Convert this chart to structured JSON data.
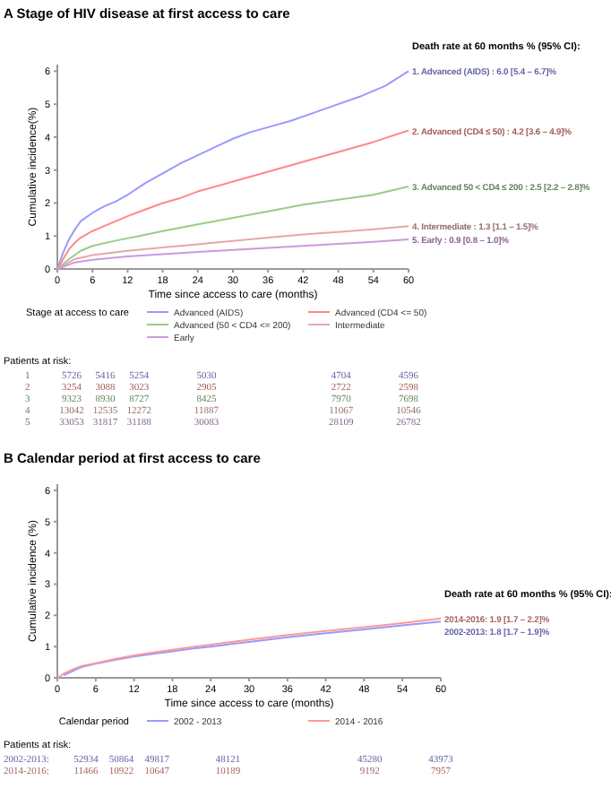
{
  "chart_data": [
    {
      "type": "line",
      "title": "A  Stage of HIV disease at first access to care",
      "xlabel": "Time since access to care (months)",
      "ylabel": "Cumulative incidence(%)",
      "legend_title": "Stage at access to care",
      "legend": "bottom",
      "xlim": [
        0,
        60
      ],
      "xticks": [
        0,
        6,
        12,
        18,
        24,
        30,
        36,
        42,
        48,
        54,
        60
      ],
      "ylim": [
        0,
        6.2
      ],
      "yticks": [
        0,
        1,
        2,
        3,
        4,
        5,
        6
      ],
      "series": [
        {
          "name": "Advanced (AIDS)",
          "color": "#9999ff",
          "x": [
            0,
            1,
            2,
            3,
            4,
            6,
            8,
            10,
            12,
            15,
            18,
            21,
            24,
            27,
            30,
            33,
            36,
            40,
            44,
            48,
            52,
            56,
            60
          ],
          "values": [
            0,
            0.5,
            0.9,
            1.2,
            1.45,
            1.7,
            1.9,
            2.05,
            2.25,
            2.6,
            2.9,
            3.2,
            3.45,
            3.7,
            3.95,
            4.15,
            4.3,
            4.5,
            4.75,
            5.0,
            5.25,
            5.55,
            6.0
          ]
        },
        {
          "name": "Advanced (CD4 <= 50)",
          "color": "#ff8888",
          "x": [
            0,
            1,
            2,
            3,
            4,
            6,
            8,
            10,
            12,
            15,
            18,
            21,
            24,
            30,
            36,
            42,
            48,
            54,
            60
          ],
          "values": [
            0,
            0.3,
            0.6,
            0.8,
            0.95,
            1.15,
            1.3,
            1.45,
            1.6,
            1.8,
            2.0,
            2.15,
            2.35,
            2.65,
            2.95,
            3.25,
            3.55,
            3.85,
            4.2
          ]
        },
        {
          "name": "Advanced (50 < CD4 <= 200)",
          "color": "#99cc88",
          "x": [
            0,
            2,
            4,
            6,
            10,
            14,
            18,
            24,
            30,
            36,
            42,
            48,
            54,
            60
          ],
          "values": [
            0,
            0.3,
            0.55,
            0.7,
            0.86,
            1.0,
            1.15,
            1.35,
            1.55,
            1.75,
            1.95,
            2.1,
            2.25,
            2.5
          ]
        },
        {
          "name": "Intermediate",
          "color": "#e6a8a8",
          "x": [
            0,
            3,
            6,
            12,
            18,
            24,
            30,
            36,
            42,
            48,
            54,
            60
          ],
          "values": [
            0,
            0.3,
            0.42,
            0.55,
            0.65,
            0.75,
            0.85,
            0.95,
            1.05,
            1.12,
            1.2,
            1.3
          ]
        },
        {
          "name": "Early",
          "color": "#cc99dd",
          "x": [
            0,
            3,
            6,
            12,
            18,
            24,
            30,
            36,
            42,
            48,
            54,
            60
          ],
          "values": [
            0,
            0.2,
            0.28,
            0.38,
            0.45,
            0.52,
            0.58,
            0.64,
            0.7,
            0.76,
            0.82,
            0.9
          ]
        }
      ],
      "annotations": [
        "Death rate at 60 months % (95% CI):",
        "1. Advanced (AIDS) : 6.0 [5.4 – 6.7]%",
        "2. Advanced (CD4 ≤ 50) : 4.2 [3.6 – 4.9]%",
        "3. Advanced 50 < CD4 ≤ 200 : 2.5 [2.2 – 2.8]%",
        "4. Intermediate : 1.3 [1.1 – 1.5]%",
        "5. Early : 0.9 [0.8 – 1.0]%",
        "Patients at risk:",
        "1 5726 5416 5254 5030 4704 4596",
        "2 3254 3088 3023 2905 2722 2598",
        "3 9323 8930 8727 8425 7970 7698",
        "4 13042 12535 12272 11887 11067 10546",
        "5 33053 31817 31188 30083 28109 26782"
      ]
    },
    {
      "type": "line",
      "title": "B  Calendar period at first access to care",
      "xlabel": "Time since access to care (months)",
      "ylabel": "Cumulative incidence (%)",
      "legend_title": "Calendar period",
      "legend": "bottom",
      "xlim": [
        0,
        60
      ],
      "xticks": [
        0,
        6,
        12,
        18,
        24,
        30,
        36,
        42,
        48,
        54,
        60
      ],
      "ylim": [
        0,
        6.2
      ],
      "yticks": [
        0,
        1,
        2,
        3,
        4,
        5,
        6
      ],
      "series": [
        {
          "name": "2002 - 2013",
          "color": "#9999ff",
          "x": [
            1,
            2,
            3,
            4,
            6,
            9,
            12,
            15,
            18,
            21,
            24,
            30,
            36,
            42,
            48,
            54,
            60
          ],
          "values": [
            0.08,
            0.18,
            0.28,
            0.36,
            0.45,
            0.57,
            0.68,
            0.77,
            0.85,
            0.93,
            1.0,
            1.15,
            1.3,
            1.43,
            1.55,
            1.68,
            1.8
          ]
        },
        {
          "name": "2014 - 2016",
          "color": "#ff9999",
          "x": [
            0,
            1,
            2,
            3,
            4,
            6,
            9,
            12,
            15,
            18,
            21,
            24,
            30,
            36,
            42,
            48,
            54,
            60
          ],
          "values": [
            0,
            0.13,
            0.23,
            0.32,
            0.39,
            0.47,
            0.6,
            0.72,
            0.81,
            0.9,
            0.98,
            1.06,
            1.22,
            1.37,
            1.5,
            1.62,
            1.75,
            1.9
          ]
        }
      ],
      "annotations": [
        "Death rate at 60 months % (95% CI):",
        "2002-2013: 1.8 [1.7 – 1.9]%",
        "2014-2016: 1.9 [1.7 – 2.2]%",
        "Patients at risk:",
        "2002-2013: 52934 50864 49817 48121 45280 43973",
        "2014-2016: 11466 10922 10647 10189 9192 7957"
      ]
    }
  ]
}
